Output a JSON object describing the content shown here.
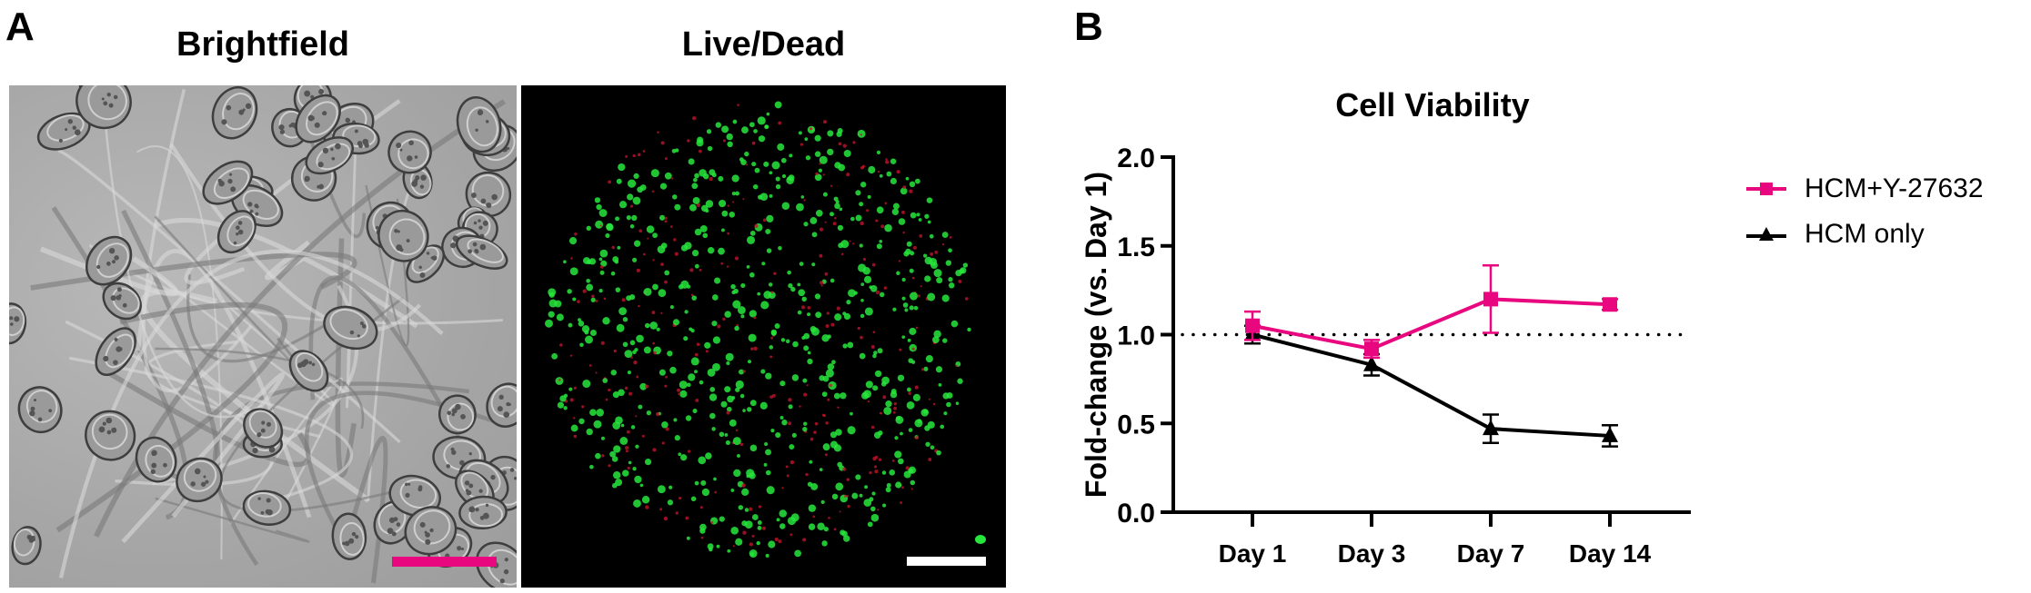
{
  "panel_a": {
    "letter": "A",
    "images": [
      {
        "title": "Brightfield",
        "scale_bar_color": "#e8077f"
      },
      {
        "title": "Live/Dead",
        "scale_bar_color": "#ffffff"
      }
    ]
  },
  "panel_b": {
    "letter": "B"
  },
  "chart_data": {
    "type": "line",
    "title": "Cell Viability",
    "xlabel": "",
    "ylabel": "Fold-change (vs. Day 1)",
    "categories": [
      "Day 1",
      "Day 3",
      "Day 7",
      "Day 14"
    ],
    "ylim": [
      0.0,
      2.0
    ],
    "yticks": [
      "0.0",
      "0.5",
      "1.0",
      "1.5",
      "2.0"
    ],
    "reference_line": {
      "y": 1.0,
      "style": "dotted",
      "color": "#000000"
    },
    "grid": false,
    "legend_position": "right",
    "series": [
      {
        "name": "HCM+Y-27632",
        "marker": "square",
        "color": "#e8077f",
        "values": [
          1.05,
          0.92,
          1.2,
          1.17
        ],
        "error": [
          0.08,
          0.05,
          0.19,
          0.03
        ]
      },
      {
        "name": "HCM only",
        "marker": "triangle",
        "color": "#000000",
        "values": [
          1.0,
          0.83,
          0.47,
          0.43
        ],
        "error": [
          0.05,
          0.06,
          0.08,
          0.06
        ]
      }
    ]
  }
}
